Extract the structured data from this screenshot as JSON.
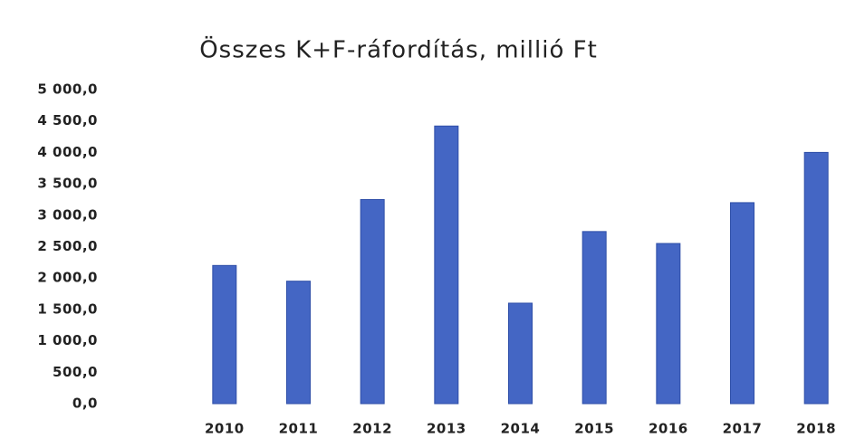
{
  "chart_data": {
    "type": "bar",
    "title": "Összes K+F-ráfordítás, millió Ft",
    "categories": [
      "2010",
      "2011",
      "2012",
      "2013",
      "2014",
      "2015",
      "2016",
      "2017",
      "2018"
    ],
    "values": [
      2200,
      1950,
      3250,
      4420,
      1600,
      2740,
      2550,
      3200,
      4000
    ],
    "color": "#4466c4",
    "ylim": [
      0,
      5000
    ],
    "yticks": [
      {
        "value": 0,
        "label": "0,0"
      },
      {
        "value": 500,
        "label": "500,0"
      },
      {
        "value": 1000,
        "label": "1 000,0"
      },
      {
        "value": 1500,
        "label": "1 500,0"
      },
      {
        "value": 2000,
        "label": "2 000,0"
      },
      {
        "value": 2500,
        "label": "2 500,0"
      },
      {
        "value": 3000,
        "label": "3 000,0"
      },
      {
        "value": 3500,
        "label": "3 500,0"
      },
      {
        "value": 4000,
        "label": "4 000,0"
      },
      {
        "value": 4500,
        "label": "4 500,0"
      },
      {
        "value": 5000,
        "label": "5 000,0"
      }
    ],
    "grid": false
  }
}
